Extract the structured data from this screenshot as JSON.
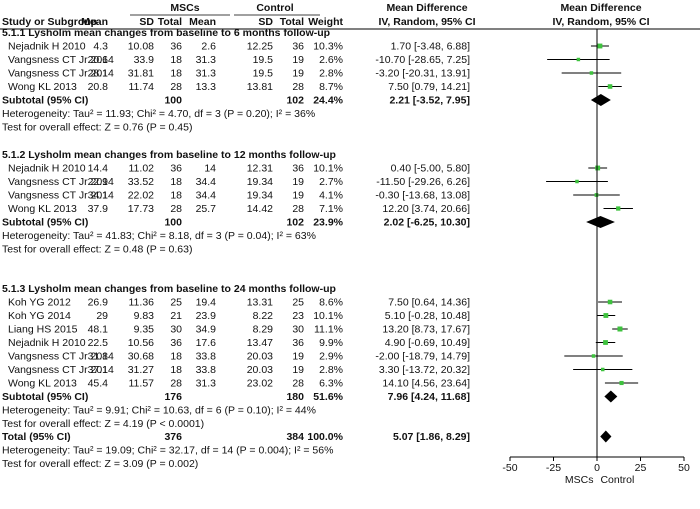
{
  "chart_data": {
    "type": "forest",
    "header": {
      "group1": "MSCs",
      "group2": "Control",
      "effect_top": "Mean Difference",
      "effect_top2": "Mean Difference",
      "columns": [
        "Study or Subgroup",
        "Mean",
        "SD",
        "Total",
        "Mean",
        "SD",
        "Total",
        "Weight",
        "IV, Random, 95% CI",
        "IV, Random, 95% CI"
      ]
    },
    "subgroups": [
      {
        "title": "5.1.1 Lysholm mean changes from baseline to 6 months follow-up",
        "studies": [
          {
            "name": "Nejadnik H 2010",
            "m1": "4.3",
            "sd1": "10.08",
            "n1": "36",
            "m2": "2.6",
            "sd2": "12.25",
            "n2": "36",
            "weight": "10.3%",
            "ci_text": "1.70 [-3.48, 6.88]",
            "est": 1.7,
            "lo": -3.48,
            "hi": 6.88
          },
          {
            "name": "Vangsness CT Jr 2014",
            "m1": "20.6",
            "sd1": "33.9",
            "n1": "18",
            "m2": "31.3",
            "sd2": "19.5",
            "n2": "19",
            "weight": "2.6%",
            "ci_text": "-10.70 [-28.65, 7.25]",
            "est": -10.7,
            "lo": -28.65,
            "hi": 7.25
          },
          {
            "name": "Vangsness CT Jr 2014",
            "m1": "28.1",
            "sd1": "31.81",
            "n1": "18",
            "m2": "31.3",
            "sd2": "19.5",
            "n2": "19",
            "weight": "2.8%",
            "ci_text": "-3.20 [-20.31, 13.91]",
            "est": -3.2,
            "lo": -20.31,
            "hi": 13.91
          },
          {
            "name": "Wong KL 2013",
            "m1": "20.8",
            "sd1": "11.74",
            "n1": "28",
            "m2": "13.3",
            "sd2": "13.81",
            "n2": "28",
            "weight": "8.7%",
            "ci_text": "7.50 [0.79, 14.21]",
            "est": 7.5,
            "lo": 0.79,
            "hi": 14.21
          }
        ],
        "subtotal": {
          "label": "Subtotal (95% CI)",
          "n1": "100",
          "n2": "102",
          "weight": "24.4%",
          "ci_text": "2.21 [-3.52, 7.95]",
          "est": 2.21,
          "lo": -3.52,
          "hi": 7.95
        },
        "heterogeneity": "Heterogeneity: Tau² = 11.93; Chi² = 4.70, df = 3 (P = 0.20); I² = 36%",
        "overall": "Test for overall effect: Z = 0.76 (P = 0.45)"
      },
      {
        "title": "5.1.2 Lysholm mean changes from baseline to 12 months follow-up",
        "studies": [
          {
            "name": "Nejadnik H 2010",
            "m1": "14.4",
            "sd1": "11.02",
            "n1": "36",
            "m2": "14",
            "sd2": "12.31",
            "n2": "36",
            "weight": "10.1%",
            "ci_text": "0.40 [-5.00, 5.80]",
            "est": 0.4,
            "lo": -5.0,
            "hi": 5.8
          },
          {
            "name": "Vangsness CT Jr 2014",
            "m1": "22.9",
            "sd1": "33.52",
            "n1": "18",
            "m2": "34.4",
            "sd2": "19.34",
            "n2": "19",
            "weight": "2.7%",
            "ci_text": "-11.50 [-29.26, 6.26]",
            "est": -11.5,
            "lo": -29.26,
            "hi": 6.26
          },
          {
            "name": "Vangsness CT Jr 2014",
            "m1": "34.1",
            "sd1": "22.02",
            "n1": "18",
            "m2": "34.4",
            "sd2": "19.34",
            "n2": "19",
            "weight": "4.1%",
            "ci_text": "-0.30 [-13.68, 13.08]",
            "est": -0.3,
            "lo": -13.68,
            "hi": 13.08
          },
          {
            "name": "Wong KL 2013",
            "m1": "37.9",
            "sd1": "17.73",
            "n1": "28",
            "m2": "25.7",
            "sd2": "14.42",
            "n2": "28",
            "weight": "7.1%",
            "ci_text": "12.20 [3.74, 20.66]",
            "est": 12.2,
            "lo": 3.74,
            "hi": 20.66
          }
        ],
        "subtotal": {
          "label": "Subtotal (95% CI)",
          "n1": "100",
          "n2": "102",
          "weight": "23.9%",
          "ci_text": "2.02 [-6.25, 10.30]",
          "est": 2.02,
          "lo": -6.25,
          "hi": 10.3
        },
        "heterogeneity": "Heterogeneity: Tau² = 41.83; Chi² = 8.18, df = 3 (P = 0.04); I² = 63%",
        "overall": "Test for overall effect: Z = 0.48 (P = 0.63)"
      },
      {
        "title": "5.1.3 Lysholm mean changes from baseline to 24 months follow-up",
        "studies": [
          {
            "name": "Koh YG 2012",
            "m1": "26.9",
            "sd1": "11.36",
            "n1": "25",
            "m2": "19.4",
            "sd2": "13.31",
            "n2": "25",
            "weight": "8.6%",
            "ci_text": "7.50 [0.64, 14.36]",
            "est": 7.5,
            "lo": 0.64,
            "hi": 14.36
          },
          {
            "name": "Koh YG 2014",
            "m1": "29",
            "sd1": "9.83",
            "n1": "21",
            "m2": "23.9",
            "sd2": "8.22",
            "n2": "23",
            "weight": "10.1%",
            "ci_text": "5.10 [-0.28, 10.48]",
            "est": 5.1,
            "lo": -0.28,
            "hi": 10.48
          },
          {
            "name": "Liang HS 2015",
            "m1": "48.1",
            "sd1": "9.35",
            "n1": "30",
            "m2": "34.9",
            "sd2": "8.29",
            "n2": "30",
            "weight": "11.1%",
            "ci_text": "13.20 [8.73, 17.67]",
            "est": 13.2,
            "lo": 8.73,
            "hi": 17.67
          },
          {
            "name": "Nejadnik H 2010",
            "m1": "22.5",
            "sd1": "10.56",
            "n1": "36",
            "m2": "17.6",
            "sd2": "13.47",
            "n2": "36",
            "weight": "9.9%",
            "ci_text": "4.90 [-0.69, 10.49]",
            "est": 4.9,
            "lo": -0.69,
            "hi": 10.49
          },
          {
            "name": "Vangsness CT Jr 2014",
            "m1": "31.8",
            "sd1": "30.68",
            "n1": "18",
            "m2": "33.8",
            "sd2": "20.03",
            "n2": "19",
            "weight": "2.9%",
            "ci_text": "-2.00 [-18.79, 14.79]",
            "est": -2.0,
            "lo": -18.79,
            "hi": 14.79
          },
          {
            "name": "Vangsness CT Jr 2014",
            "m1": "37.1",
            "sd1": "31.27",
            "n1": "18",
            "m2": "33.8",
            "sd2": "20.03",
            "n2": "19",
            "weight": "2.8%",
            "ci_text": "3.30 [-13.72, 20.32]",
            "est": 3.3,
            "lo": -13.72,
            "hi": 20.32
          },
          {
            "name": "Wong KL 2013",
            "m1": "45.4",
            "sd1": "11.57",
            "n1": "28",
            "m2": "31.3",
            "sd2": "23.02",
            "n2": "28",
            "weight": "6.3%",
            "ci_text": "14.10 [4.56, 23.64]",
            "est": 14.1,
            "lo": 4.56,
            "hi": 23.64
          }
        ],
        "subtotal": {
          "label": "Subtotal (95% CI)",
          "n1": "176",
          "n2": "180",
          "weight": "51.6%",
          "ci_text": "7.96 [4.24, 11.68]",
          "est": 7.96,
          "lo": 4.24,
          "hi": 11.68
        },
        "heterogeneity": "Heterogeneity: Tau² = 9.91; Chi² = 10.63, df = 6 (P = 0.10); I² = 44%",
        "overall": "Test for overall effect: Z = 4.19 (P < 0.0001)"
      }
    ],
    "total": {
      "label": "Total (95% CI)",
      "n1": "376",
      "n2": "384",
      "weight": "100.0%",
      "ci_text": "5.07 [1.86, 8.29]",
      "est": 5.07,
      "lo": 1.86,
      "hi": 8.29
    },
    "total_heterogeneity": "Heterogeneity: Tau² = 19.09; Chi² = 32.17, df = 14 (P = 0.004); I² = 56%",
    "total_overall": "Test for overall effect: Z = 3.09 (P = 0.002)",
    "axis": {
      "xlim": [
        -50,
        50
      ],
      "ticks": [
        -50,
        -25,
        0,
        25,
        50
      ],
      "tick_labels": [
        "-50",
        "-25",
        "0",
        "25",
        "50"
      ],
      "favours_left": "MSCs",
      "favours_right": "Control"
    },
    "colors": {
      "square": "#3ec23e",
      "diamond": "#000000",
      "text": "#111111",
      "line": "#000000"
    }
  }
}
